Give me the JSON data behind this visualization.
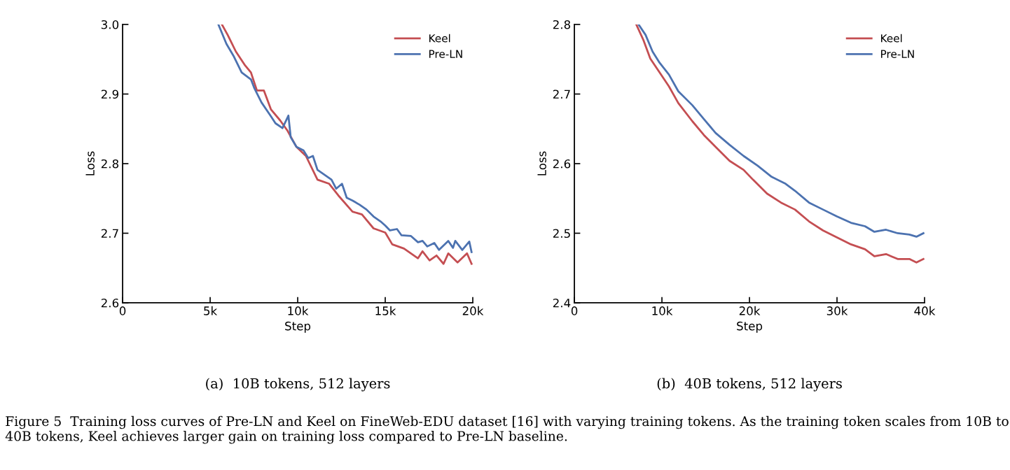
{
  "chart_data": [
    {
      "type": "line",
      "xlabel": "Step",
      "ylabel": "Loss",
      "xlim": [
        0,
        20000
      ],
      "ylim": [
        2.6,
        3.0
      ],
      "xticks": [
        0,
        {
          "value": 5000,
          "label": "5k"
        },
        {
          "value": 10000,
          "label": "10k"
        },
        {
          "value": 15000,
          "label": "15k"
        },
        {
          "value": 20000,
          "label": "20k"
        }
      ],
      "yticks": [
        {
          "value": 2.6,
          "label": "2.6"
        },
        {
          "value": 2.7,
          "label": "2.7"
        },
        {
          "value": 2.8,
          "label": "2.8"
        },
        {
          "value": 2.9,
          "label": "2.9"
        },
        {
          "value": 3.0,
          "label": "3.0"
        }
      ],
      "legend": "top right",
      "grid": false,
      "annotations": [
        "(a)  10B tokens, 512 layers"
      ],
      "series": [
        {
          "name": "Keel",
          "color": "#c44e52",
          "x": [
            5670,
            6000,
            6470,
            7000,
            7330,
            7670,
            8070,
            8470,
            9000,
            9400,
            9930,
            10470,
            11130,
            11800,
            12330,
            13130,
            13670,
            14330,
            15000,
            15400,
            16070,
            16870,
            17130,
            17530,
            17930,
            18330,
            18600,
            19130,
            19670,
            19930
          ],
          "values": [
            3.0,
            2.985,
            2.961,
            2.941,
            2.931,
            2.905,
            2.905,
            2.878,
            2.862,
            2.848,
            2.824,
            2.811,
            2.777,
            2.771,
            2.754,
            2.731,
            2.727,
            2.707,
            2.701,
            2.684,
            2.678,
            2.664,
            2.674,
            2.661,
            2.668,
            2.656,
            2.671,
            2.658,
            2.671,
            2.656
          ]
        },
        {
          "name": "Pre-LN",
          "color": "#4c72b0",
          "x": [
            5470,
            5930,
            6330,
            6800,
            7330,
            7530,
            7930,
            8470,
            8730,
            9130,
            9470,
            9600,
            9930,
            10330,
            10600,
            10870,
            11130,
            11530,
            11930,
            12200,
            12530,
            12800,
            13130,
            13530,
            13930,
            14330,
            14730,
            15000,
            15270,
            15670,
            15930,
            16470,
            16870,
            17130,
            17400,
            17800,
            18070,
            18600,
            18870,
            19000,
            19400,
            19800,
            19930
          ],
          "values": [
            3.0,
            2.972,
            2.955,
            2.931,
            2.921,
            2.908,
            2.888,
            2.868,
            2.858,
            2.851,
            2.869,
            2.838,
            2.824,
            2.819,
            2.808,
            2.811,
            2.791,
            2.784,
            2.777,
            2.764,
            2.771,
            2.751,
            2.747,
            2.741,
            2.734,
            2.724,
            2.717,
            2.711,
            2.704,
            2.706,
            2.697,
            2.696,
            2.687,
            2.689,
            2.681,
            2.686,
            2.676,
            2.689,
            2.679,
            2.689,
            2.676,
            2.688,
            2.673
          ]
        }
      ]
    },
    {
      "type": "line",
      "xlabel": "Step",
      "ylabel": "Loss",
      "xlim": [
        0,
        40000
      ],
      "ylim": [
        2.4,
        2.8
      ],
      "xticks": [
        0,
        {
          "value": 10000,
          "label": "10k"
        },
        {
          "value": 20000,
          "label": "20k"
        },
        {
          "value": 30000,
          "label": "30k"
        },
        {
          "value": 40000,
          "label": "40k"
        }
      ],
      "yticks": [
        {
          "value": 2.4,
          "label": "2.4"
        },
        {
          "value": 2.5,
          "label": "2.5"
        },
        {
          "value": 2.6,
          "label": "2.6"
        },
        {
          "value": 2.7,
          "label": "2.7"
        },
        {
          "value": 2.8,
          "label": "2.8"
        }
      ],
      "legend": "top right",
      "grid": false,
      "annotations": [
        "(b)  40B tokens, 512 layers",
        "Figure 5  Training loss curves of Pre-LN and Keel on FineWeb-EDU dataset [16] with varying training tokens. As the training token scales from 10B to 40B tokens, Keel achieves larger gain on training loss compared to Pre-LN baseline."
      ],
      "series": [
        {
          "name": "Keel",
          "color": "#c44e52",
          "x": [
            7070,
            7870,
            8670,
            9730,
            10800,
            11870,
            13470,
            14800,
            16130,
            17730,
            19330,
            20400,
            22000,
            23600,
            25200,
            26800,
            28400,
            30000,
            31600,
            33200,
            34270,
            35600,
            36930,
            38270,
            39070,
            39870
          ],
          "values": [
            2.8,
            2.778,
            2.751,
            2.731,
            2.711,
            2.687,
            2.661,
            2.641,
            2.624,
            2.604,
            2.591,
            2.577,
            2.557,
            2.544,
            2.534,
            2.517,
            2.504,
            2.494,
            2.484,
            2.477,
            2.467,
            2.47,
            2.463,
            2.463,
            2.458,
            2.463
          ]
        },
        {
          "name": "Pre-LN",
          "color": "#4c72b0",
          "x": [
            7330,
            8130,
            8930,
            9730,
            10800,
            11870,
            13470,
            14800,
            16130,
            17730,
            19330,
            20930,
            22530,
            24130,
            25200,
            26800,
            28400,
            30000,
            31600,
            33200,
            34270,
            35600,
            36930,
            38270,
            39070,
            39870
          ],
          "values": [
            2.8,
            2.785,
            2.761,
            2.745,
            2.728,
            2.704,
            2.684,
            2.664,
            2.644,
            2.627,
            2.611,
            2.597,
            2.581,
            2.571,
            2.561,
            2.544,
            2.534,
            2.524,
            2.515,
            2.51,
            2.502,
            2.505,
            2.5,
            2.498,
            2.495,
            2.5
          ]
        }
      ]
    }
  ]
}
